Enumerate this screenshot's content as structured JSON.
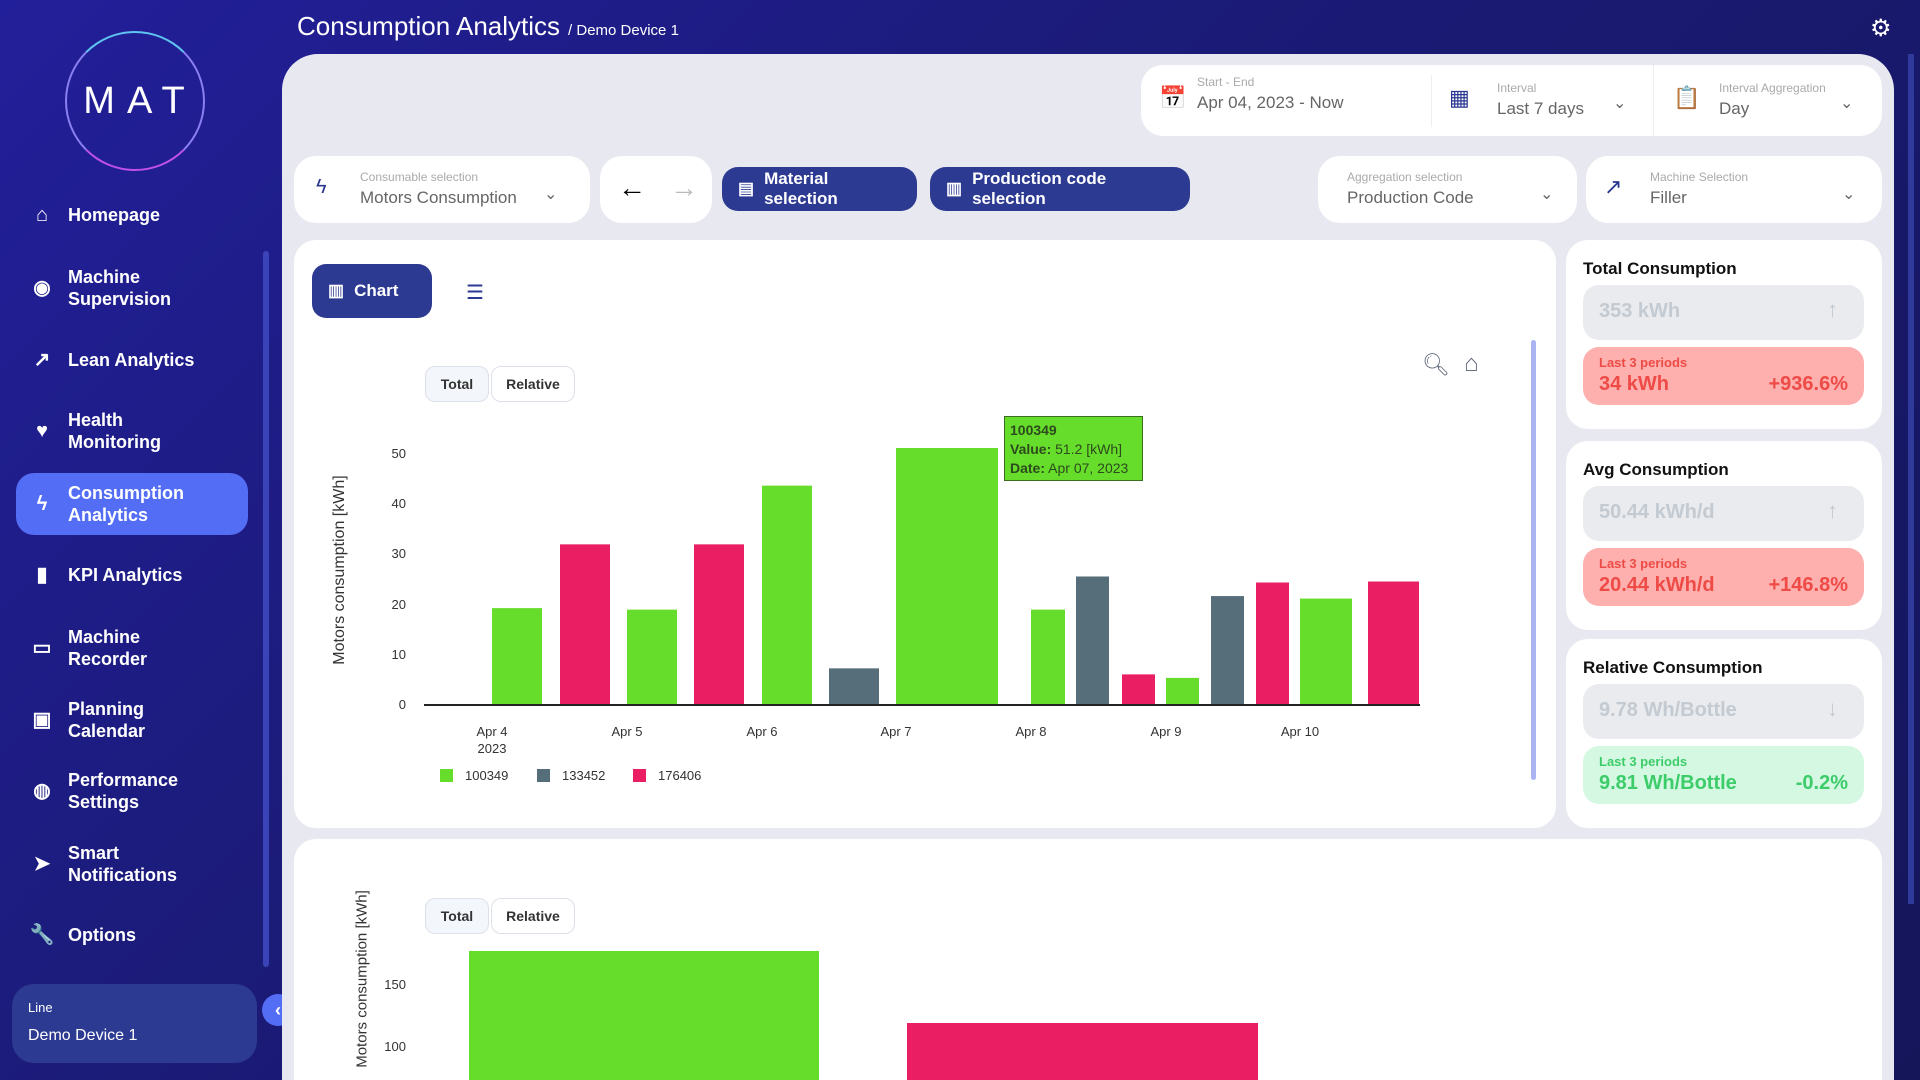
{
  "header": {
    "title": "Consumption Analytics",
    "breadcrumb": "/ Demo Device 1",
    "settings_icon": "gear-icon"
  },
  "sidebar": {
    "logo": "MAT",
    "items": [
      {
        "label": "Homepage",
        "icon": "home-icon",
        "glyph": "⌂"
      },
      {
        "label": "Machine Supervision",
        "icon": "eye-icon",
        "glyph": "◉"
      },
      {
        "label": "Lean Analytics",
        "icon": "trend-icon",
        "glyph": "↗"
      },
      {
        "label": "Health Monitoring",
        "icon": "heart-pulse-icon",
        "glyph": "♥"
      },
      {
        "label": "Consumption Analytics",
        "icon": "bolt-icon",
        "glyph": "ϟ",
        "active": true
      },
      {
        "label": "KPI Analytics",
        "icon": "bar-chart-icon",
        "glyph": "▮"
      },
      {
        "label": "Machine Recorder",
        "icon": "recorder-icon",
        "glyph": "▭"
      },
      {
        "label": "Planning Calendar",
        "icon": "calendar-icon",
        "glyph": "▣"
      },
      {
        "label": "Performance Settings",
        "icon": "stopwatch-icon",
        "glyph": "◍"
      },
      {
        "label": "Smart Notifications",
        "icon": "send-icon",
        "glyph": "➤"
      },
      {
        "label": "Options",
        "icon": "wrench-icon",
        "glyph": "🔧"
      }
    ],
    "line_label": "Line",
    "line_value": "Demo Device 1"
  },
  "filters": {
    "start_end": {
      "label": "Start - End",
      "value": "Apr 04, 2023 - Now"
    },
    "interval": {
      "label": "Interval",
      "value": "Last 7 days"
    },
    "interval_aggregation": {
      "label": "Interval Aggregation",
      "value": "Day"
    },
    "consumable": {
      "label": "Consumable selection",
      "value": "Motors Consumption"
    },
    "material_button": "Material selection",
    "production_code_button": "Production code selection",
    "aggregation": {
      "label": "Aggregation selection",
      "value": "Production Code"
    },
    "machine": {
      "label": "Machine Selection",
      "value": "Filler"
    }
  },
  "view_toggle": {
    "chart_label": "Chart"
  },
  "mode_buttons": {
    "total": "Total",
    "relative": "Relative"
  },
  "tooltip": {
    "title": "100349",
    "value_label": "Value:",
    "value": "51.2 [kWh]",
    "date_label": "Date:",
    "date": "Apr 07, 2023"
  },
  "colors": {
    "100349": "#66dd2a",
    "133452": "#566e7a",
    "176406": "#e91e63"
  },
  "chart_data": [
    {
      "type": "bar",
      "ylabel": "Motors consumption [kWh]",
      "ylim": [
        0,
        50
      ],
      "yticks": [
        0,
        10,
        20,
        30,
        40,
        50
      ],
      "xticks": [
        "Apr 4",
        "Apr 5",
        "Apr 6",
        "Apr 7",
        "Apr 8",
        "Apr 9",
        "Apr 10"
      ],
      "xtick_year": "2023",
      "legend": [
        "100349",
        "133452",
        "176406"
      ],
      "legend_position": "bottom-left",
      "points": [
        {
          "date": "Apr 4",
          "series": "100349",
          "value": 19.3
        },
        {
          "date": "Apr 4",
          "series": "176406",
          "value": 32
        },
        {
          "date": "Apr 5",
          "series": "100349",
          "value": 19
        },
        {
          "date": "Apr 5",
          "series": "176406",
          "value": 32
        },
        {
          "date": "Apr 6",
          "series": "100349",
          "value": 43.7
        },
        {
          "date": "Apr 6",
          "series": "133452",
          "value": 7.3
        },
        {
          "date": "Apr 7",
          "series": "100349",
          "value": 51.2
        },
        {
          "date": "Apr 8",
          "series": "100349",
          "value": 19
        },
        {
          "date": "Apr 8",
          "series": "133452",
          "value": 25.6
        },
        {
          "date": "Apr 8",
          "series": "176406",
          "value": 6.1
        },
        {
          "date": "Apr 9",
          "series": "100349",
          "value": 5.4
        },
        {
          "date": "Apr 9",
          "series": "133452",
          "value": 21.7
        },
        {
          "date": "Apr 9",
          "series": "176406",
          "value": 24.4
        },
        {
          "date": "Apr 10",
          "series": "100349",
          "value": 21.2
        },
        {
          "date": "Apr 10",
          "series": "176406",
          "value": 24.6
        }
      ]
    },
    {
      "type": "bar",
      "ylabel": "Motors consumption [kWh]",
      "yticks": [
        100,
        150
      ],
      "points": [
        {
          "series": "100349",
          "value": 177.5
        },
        {
          "series": "176406",
          "value": 119.6
        }
      ]
    }
  ],
  "kpis": [
    {
      "title": "Total Consumption",
      "value": "353 kWh",
      "trend": "↑",
      "cmp_label": "Last 3 periods",
      "cmp_value": "34 kWh",
      "cmp_pct": "+936.6%",
      "status": "red"
    },
    {
      "title": "Avg Consumption",
      "value": "50.44 kWh/d",
      "trend": "↑",
      "cmp_label": "Last 3 periods",
      "cmp_value": "20.44 kWh/d",
      "cmp_pct": "+146.8%",
      "status": "red"
    },
    {
      "title": "Relative Consumption",
      "value": "9.78 Wh/Bottle",
      "trend": "↓",
      "cmp_label": "Last 3 periods",
      "cmp_value": "9.81 Wh/Bottle",
      "cmp_pct": "-0.2%",
      "status": "green"
    }
  ]
}
